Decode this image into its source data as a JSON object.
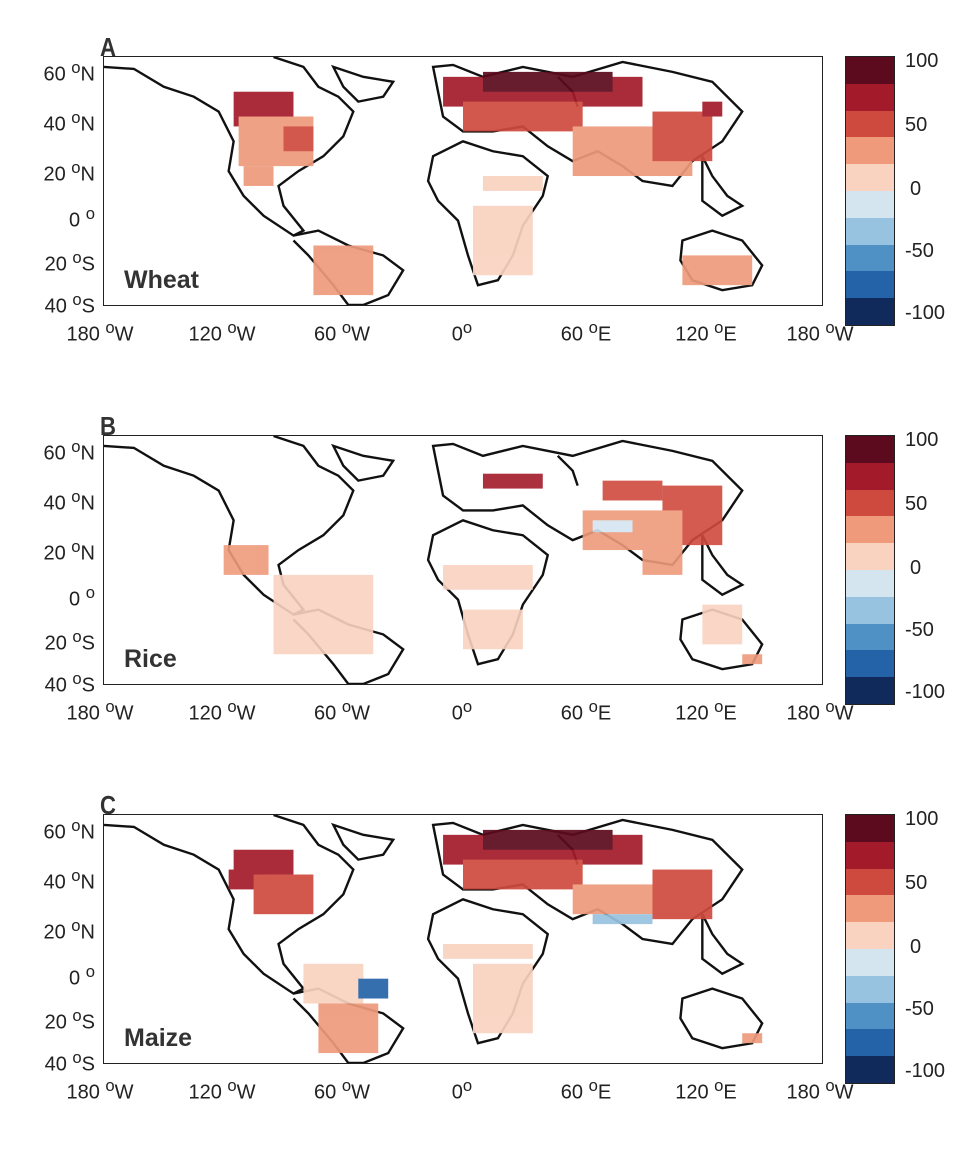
{
  "colorbar": {
    "colors": [
      "#5c0a1d",
      "#a31b2a",
      "#cf4a3e",
      "#ee9a7b",
      "#f9d2c0",
      "#d4e5f0",
      "#97c3e0",
      "#4f91c4",
      "#2463a8",
      "#102a5c"
    ],
    "ticks": [
      "100",
      "50",
      "0",
      "-50",
      "-100"
    ]
  },
  "axes": {
    "y_ticks": [
      {
        "deg": "60",
        "sym": "o",
        "hem": "N"
      },
      {
        "deg": "40",
        "sym": "o",
        "hem": "N"
      },
      {
        "deg": "20",
        "sym": "o",
        "hem": "N"
      },
      {
        "deg": "0",
        "sym": "o",
        "hem": ""
      },
      {
        "deg": "20",
        "sym": "o",
        "hem": "S"
      },
      {
        "deg": "40",
        "sym": "o",
        "hem": "S"
      }
    ],
    "x_ticks": [
      {
        "deg": "180",
        "sym": "o",
        "hem": "W"
      },
      {
        "deg": "120",
        "sym": "o",
        "hem": "W"
      },
      {
        "deg": "60",
        "sym": "o",
        "hem": "W"
      },
      {
        "deg": "0",
        "sym": "o",
        "hem": ""
      },
      {
        "deg": "60",
        "sym": "o",
        "hem": "E"
      },
      {
        "deg": "120",
        "sym": "o",
        "hem": "E"
      },
      {
        "deg": "180",
        "sym": "o",
        "hem": "W"
      }
    ]
  },
  "panels": [
    {
      "letter": "A",
      "crop": "Wheat"
    },
    {
      "letter": "B",
      "crop": "Rice"
    },
    {
      "letter": "C",
      "crop": "Maize"
    }
  ]
}
